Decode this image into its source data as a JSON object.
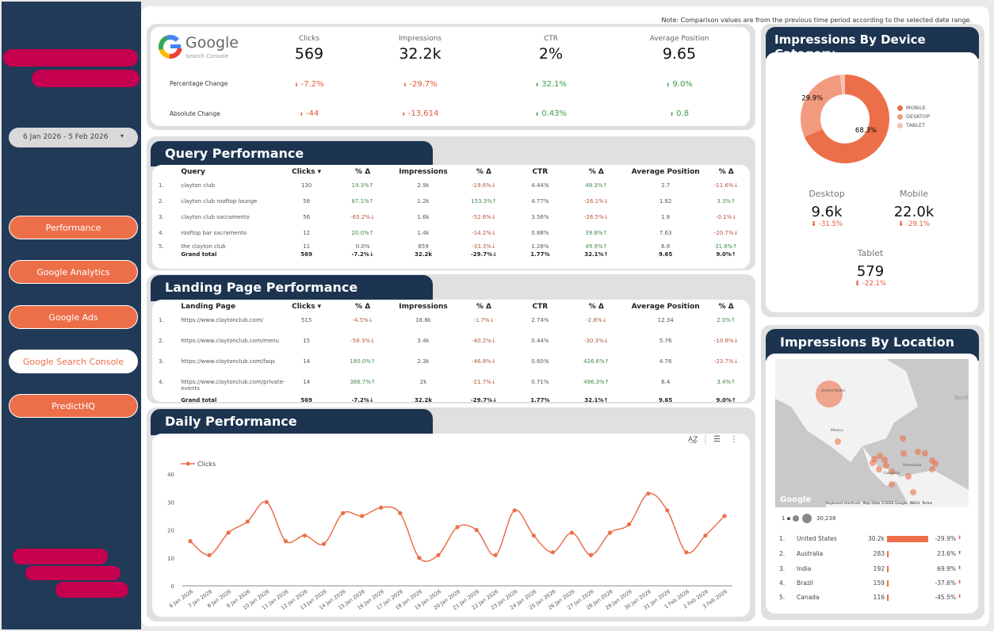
{
  "sidebar": {
    "date_range": "6 Jan 2026 - 5 Feb 2026",
    "nav": [
      {
        "label": "Performance",
        "active": false
      },
      {
        "label": "Google Analytics",
        "active": false
      },
      {
        "label": "Google Ads",
        "active": false
      },
      {
        "label": "Google Search Console",
        "active": true
      },
      {
        "label": "PredictHQ",
        "active": false
      }
    ]
  },
  "note": "Note: Comparison values are from the previous time period according to the selected date range.",
  "logo": {
    "brand": "Google",
    "product": "Search Console"
  },
  "kpis": [
    {
      "label": "Clicks",
      "value": "569",
      "pct": "-7.2%",
      "abs": "-44",
      "dir": "down"
    },
    {
      "label": "Impressions",
      "value": "32.2k",
      "pct": "-29.7%",
      "abs": "-13,614",
      "dir": "down"
    },
    {
      "label": "CTR",
      "value": "2%",
      "pct": "32.1%",
      "abs": "0.43%",
      "dir": "up"
    },
    {
      "label": "Average Position",
      "value": "9.65",
      "pct": "9.0%",
      "abs": "0.8",
      "dir": "up"
    }
  ],
  "kpi_rows": {
    "pct": "Percentage Change",
    "abs": "Absolute Change"
  },
  "query": {
    "title": "Query Performance",
    "headers": [
      "",
      "Query",
      "Clicks ▾",
      "% Δ",
      "Impressions",
      "% Δ",
      "CTR",
      "% Δ",
      "Average Position",
      "% Δ"
    ],
    "rows": [
      [
        "1.",
        "clayton club",
        "130",
        "19.3%↑",
        "2.9k",
        "-19.6%↓",
        "4.44%",
        "48.3%↑",
        "2.7",
        "-11.6%↓"
      ],
      [
        "2.",
        "clayton club rooftop lounge",
        "58",
        "87.1%↑",
        "1.2k",
        "153.3%↑",
        "4.77%",
        "-26.1%↓",
        "1.82",
        "3.3%↑"
      ],
      [
        "3.",
        "clayton club sacramento",
        "56",
        "-65.2%↓",
        "1.6k",
        "-52.6%↓",
        "3.56%",
        "-26.5%↓",
        "1.8",
        "-0.1%↓"
      ],
      [
        "4.",
        "rooftop bar sacramento",
        "12",
        "20.0%↑",
        "1.4k",
        "-14.2%↓",
        "0.88%",
        "39.8%↑",
        "7.63",
        "-20.7%↓"
      ],
      [
        "5.",
        "the clayton club",
        "11",
        "0.0%",
        "859",
        "-33.3%↓",
        "1.28%",
        "49.9%↑",
        "6.8",
        "31.8%↑"
      ]
    ],
    "total": [
      "",
      "Grand total",
      "569",
      "-7.2%↓",
      "32.2k",
      "-29.7%↓",
      "1.77%",
      "32.1%↑",
      "9.65",
      "9.0%↑"
    ]
  },
  "landing": {
    "title": "Landing Page Performance",
    "headers": [
      "",
      "Landing Page",
      "Clicks ▾",
      "% Δ",
      "Impressions",
      "% Δ",
      "CTR",
      "% Δ",
      "Average Position",
      "% Δ"
    ],
    "rows": [
      [
        "1.",
        "https://www.claytonclub.com/",
        "515",
        "-4.5%↓",
        "18.8k",
        "-1.7%↓",
        "2.74%",
        "-2.8%↓",
        "12.34",
        "2.0%↑"
      ],
      [
        "2.",
        "https://www.claytonclub.com/menu",
        "15",
        "-58.3%↓",
        "3.4k",
        "-40.2%↓",
        "0.44%",
        "-30.3%↓",
        "5.76",
        "-10.8%↓"
      ],
      [
        "3.",
        "https://www.claytonclub.com/faqs",
        "14",
        "180.0%↑",
        "2.3k",
        "-46.8%↓",
        "0.60%",
        "426.6%↑",
        "4.76",
        "-23.7%↓"
      ],
      [
        "4.",
        "https://www.claytonclub.com/private-events",
        "14",
        "366.7%↑",
        "2k",
        "-21.7%↓",
        "0.71%",
        "496.3%↑",
        "6.4",
        "3.4%↑"
      ]
    ],
    "total": [
      "",
      "Grand total",
      "569",
      "-7.2%↓",
      "32.2k",
      "-29.7%↓",
      "1.77%",
      "32.1%↑",
      "9.65",
      "9.0%↑"
    ]
  },
  "daily": {
    "title": "Daily Performance",
    "icons": [
      "sort-az-icon",
      "filter-icon",
      "more-vert-icon"
    ]
  },
  "chart_data": {
    "type": "line",
    "series": [
      {
        "name": "Clicks",
        "values": [
          16,
          11,
          19,
          23,
          30,
          16,
          18,
          15,
          26,
          25,
          28,
          26,
          10,
          11,
          21,
          20,
          11,
          27,
          18,
          12,
          19,
          11,
          19,
          22,
          33,
          27,
          12,
          18,
          25
        ]
      }
    ],
    "x": [
      "6 Jan 2026",
      "7 Jan 2026",
      "8 Jan 2026",
      "9 Jan 2026",
      "10 Jan 2026",
      "11 Jan 2026",
      "12 Jan 2026",
      "13 Jan 2026",
      "14 Jan 2026",
      "15 Jan 2026",
      "16 Jan 2026",
      "17 Jan 2026",
      "18 Jan 2026",
      "19 Jan 2026",
      "20 Jan 2026",
      "21 Jan 2026",
      "22 Jan 2026",
      "23 Jan 2026",
      "24 Jan 2026",
      "25 Jan 2026",
      "26 Jan 2026",
      "27 Jan 2026",
      "28 Jan 2026",
      "29 Jan 2026",
      "30 Jan 2026",
      "31 Jan 2026",
      "1 Feb 2026",
      "2 Feb 2026",
      "3 Feb 2026"
    ],
    "yticks": [
      "0",
      "10",
      "20",
      "30",
      "40"
    ],
    "ylim": [
      0,
      40
    ],
    "legend": "top-left",
    "color": "#ec6f4a",
    "smooth": true
  },
  "device": {
    "title": "Impressions By Device Category",
    "chart_data": {
      "type": "pie",
      "donut": true,
      "labels": [
        "MOBILE",
        "DESKTOP",
        "TABLET"
      ],
      "values": [
        68.3,
        29.9,
        1.8
      ],
      "data_labels": [
        "68.3%",
        "29.9%",
        ""
      ],
      "colors": [
        "#ec6f4a",
        "#f19a7f",
        "#f6c2b2"
      ],
      "legend": "right"
    },
    "metrics": [
      {
        "label": "Desktop",
        "value": "9.6k",
        "chg": "-31.5%"
      },
      {
        "label": "Mobile",
        "value": "22.0k",
        "chg": "-29.1%"
      },
      {
        "label": "Tablet",
        "value": "579",
        "chg": "-22.1%"
      }
    ]
  },
  "location": {
    "title": "Impressions By Location",
    "map_labels": {
      "us": "United States",
      "mx": "Mexico",
      "ve": "Venezuela",
      "co": "Colombia",
      "ocean": "North Atlantic Ocean",
      "logo": "Google",
      "kb": "Keyboard shortcuts",
      "attr": "Map Data ©2026 Google, INEGI",
      "terms": "Terms"
    },
    "scale": {
      "min": "1",
      "max": "30,238"
    },
    "rows": [
      {
        "rank": "1.",
        "country": "United States",
        "value": "30.2k",
        "bar": 1.0,
        "chg": "-29.9%",
        "dir": "down"
      },
      {
        "rank": "2.",
        "country": "Australia",
        "value": "283",
        "bar": 0.009,
        "chg": "23.6%",
        "dir": "up"
      },
      {
        "rank": "3.",
        "country": "India",
        "value": "192",
        "bar": 0.006,
        "chg": "69.9%",
        "dir": "up"
      },
      {
        "rank": "4.",
        "country": "Brazil",
        "value": "159",
        "bar": 0.005,
        "chg": "-37.6%",
        "dir": "down"
      },
      {
        "rank": "5.",
        "country": "Canada",
        "value": "116",
        "bar": 0.004,
        "chg": "-45.5%",
        "dir": "down"
      }
    ]
  }
}
